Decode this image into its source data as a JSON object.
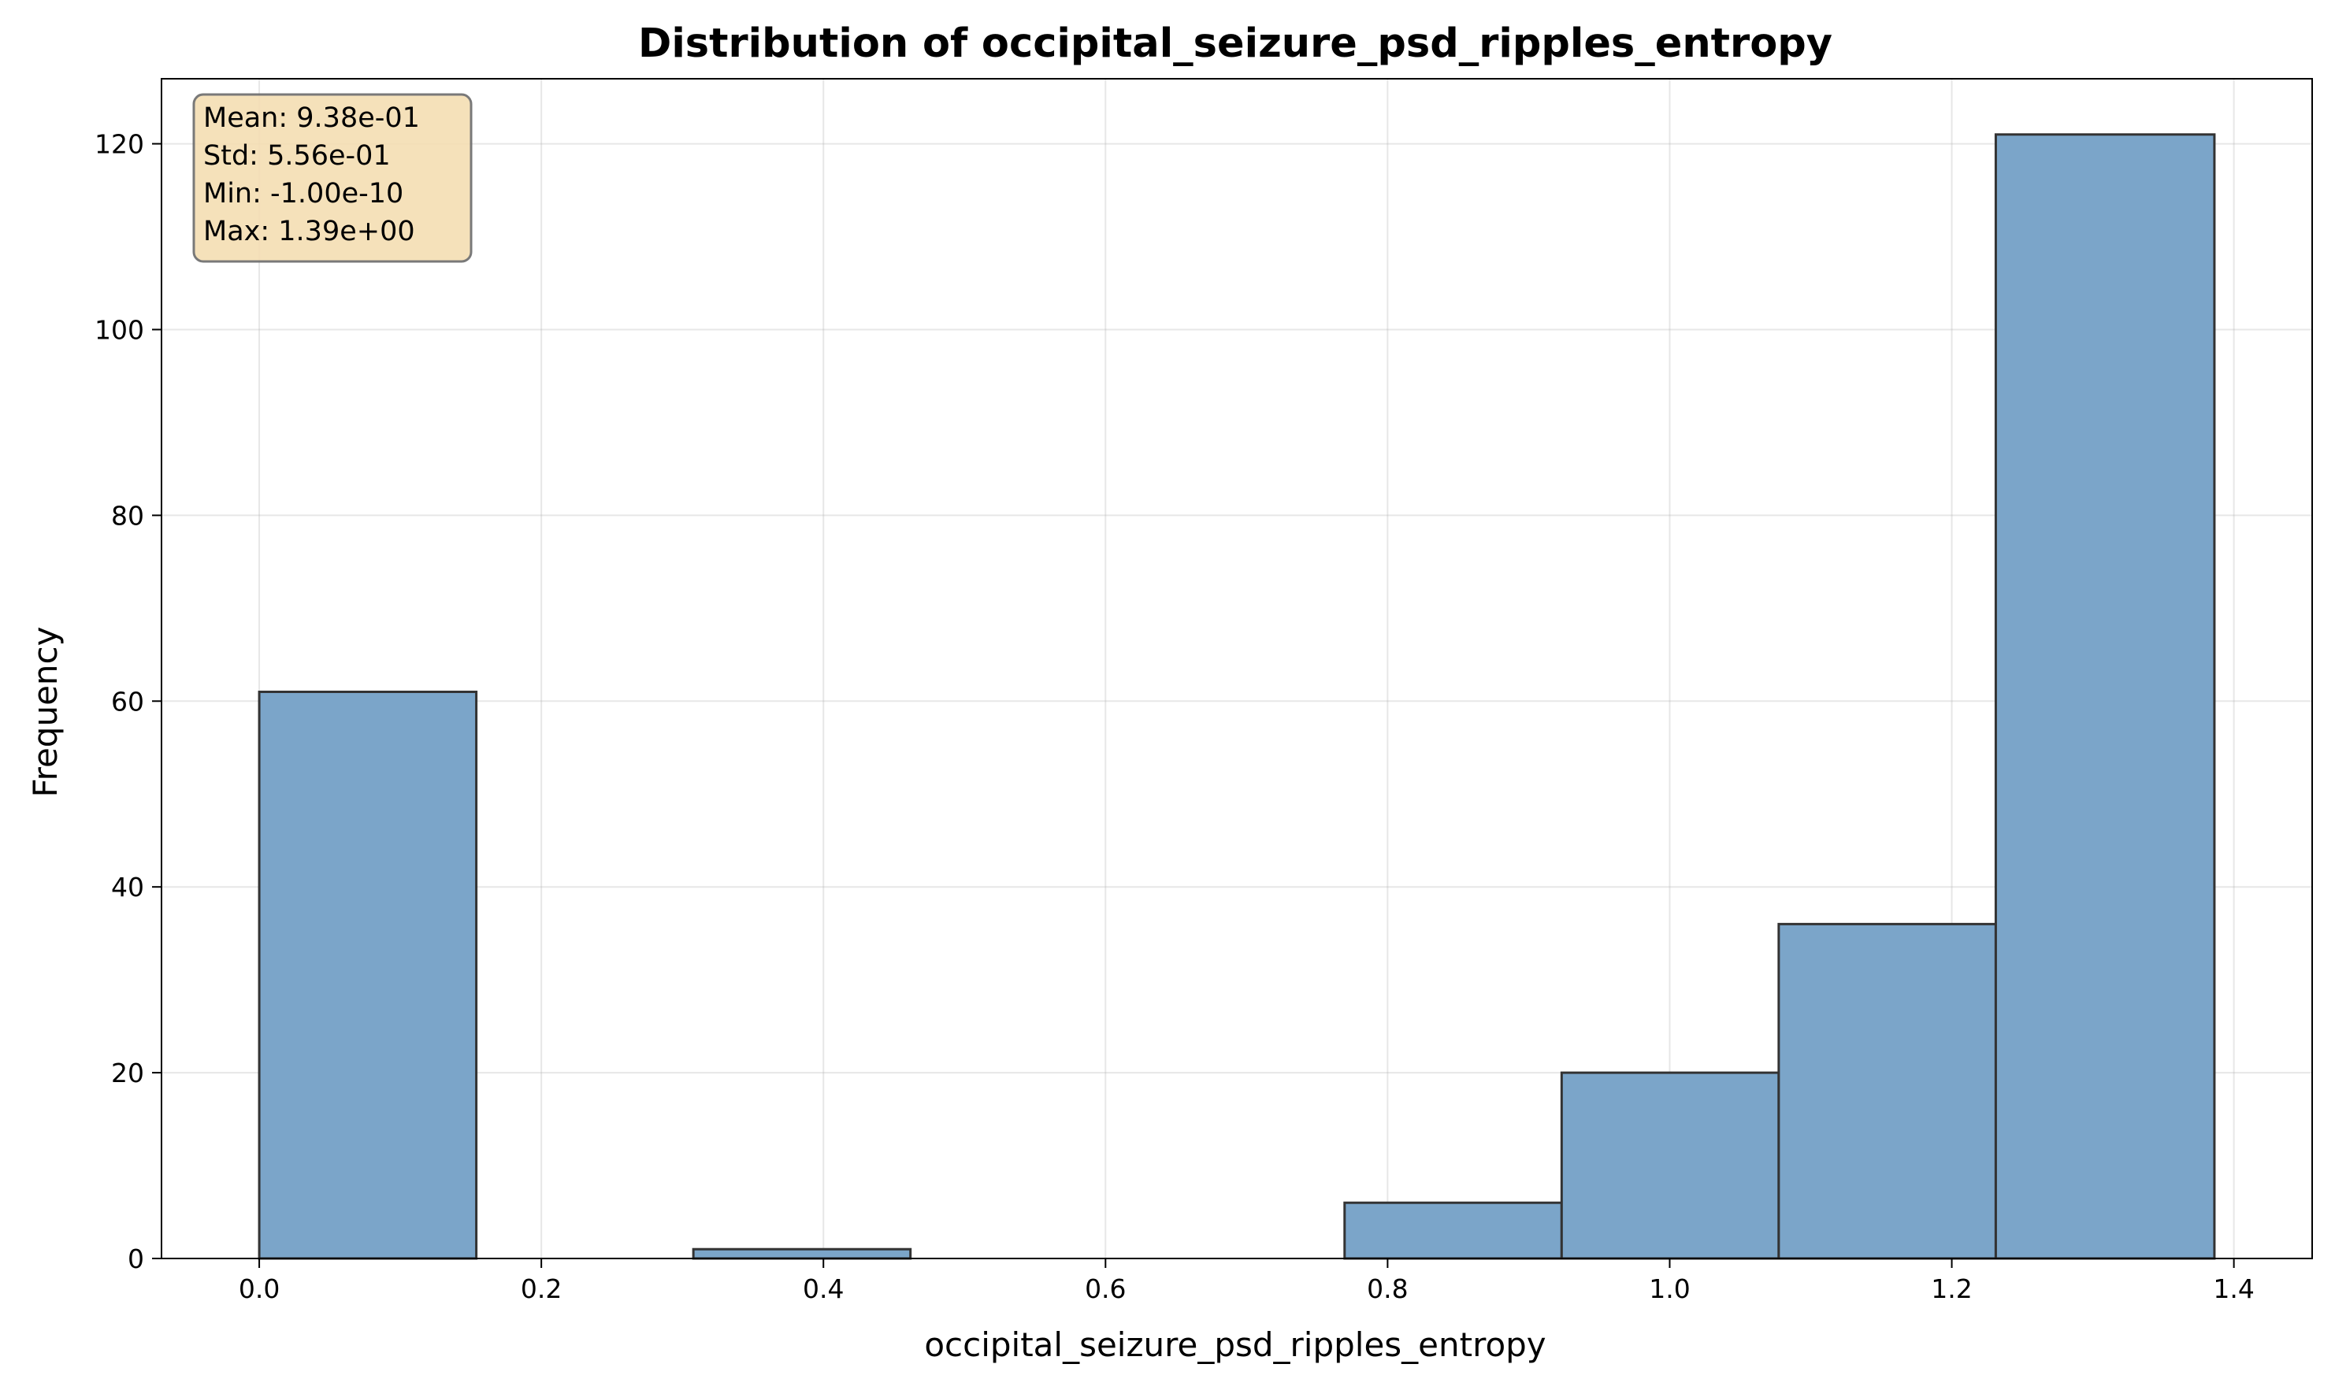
{
  "chart_data": {
    "type": "bar",
    "title": "Distribution of occipital_seizure_psd_ripples_entropy",
    "xlabel": "occipital_seizure_psd_ripples_entropy",
    "ylabel": "Frequency",
    "xlim": [
      -0.0693,
      1.4555
    ],
    "ylim": [
      0,
      127
    ],
    "xticks": [
      0.0,
      0.2,
      0.4,
      0.6,
      0.8,
      1.0,
      1.2,
      1.4
    ],
    "xtick_labels": [
      "0.0",
      "0.2",
      "0.4",
      "0.6",
      "0.8",
      "1.0",
      "1.2",
      "1.4"
    ],
    "yticks": [
      0,
      20,
      40,
      60,
      80,
      100,
      120
    ],
    "ytick_labels": [
      "0",
      "20",
      "40",
      "60",
      "80",
      "100",
      "120"
    ],
    "grid": true,
    "bins": [
      {
        "x0": 0.0,
        "x1": 0.1539,
        "count": 61
      },
      {
        "x0": 0.1539,
        "x1": 0.3078,
        "count": 0
      },
      {
        "x0": 0.3078,
        "x1": 0.4617,
        "count": 1
      },
      {
        "x0": 0.4617,
        "x1": 0.6156,
        "count": 0
      },
      {
        "x0": 0.6156,
        "x1": 0.7695,
        "count": 0
      },
      {
        "x0": 0.7695,
        "x1": 0.9234,
        "count": 6
      },
      {
        "x0": 0.9234,
        "x1": 1.0773,
        "count": 20
      },
      {
        "x0": 1.0773,
        "x1": 1.2312,
        "count": 36
      },
      {
        "x0": 1.2312,
        "x1": 1.3862,
        "count": 121
      }
    ],
    "bar_color": "#7ba5c9",
    "edge_color": "#333333",
    "stats_box": {
      "lines": [
        "Mean: 9.38e-01",
        "Std: 5.56e-01",
        "Min: -1.00e-10",
        "Max: 1.39e+00"
      ],
      "background": "#f5deb3"
    }
  }
}
